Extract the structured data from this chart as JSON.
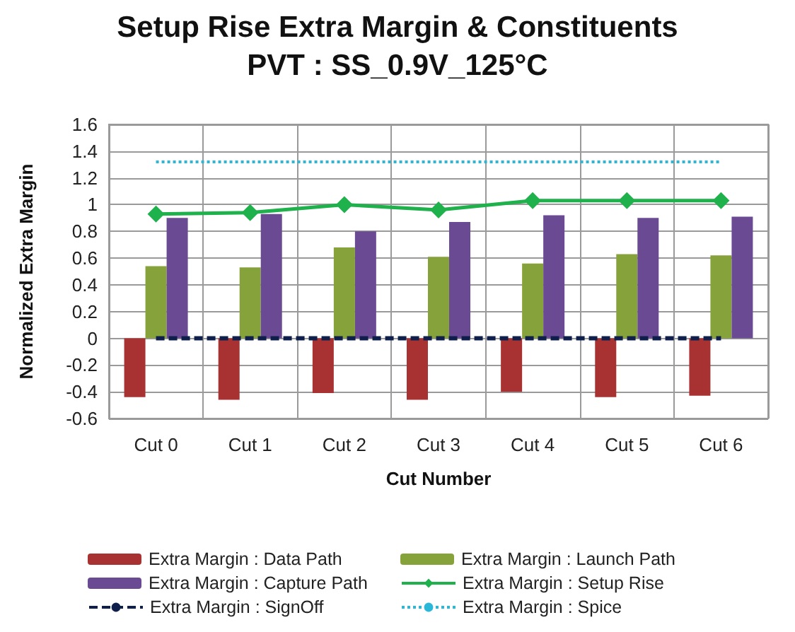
{
  "chart_data": {
    "type": "bar",
    "title": "Setup Rise Extra Margin & Constituents",
    "subtitle": "PVT : SS_0.9V_125°C",
    "xlabel": "Cut Number",
    "ylabel": "Normalized Extra Margin",
    "categories": [
      "Cut 0",
      "Cut 1",
      "Cut 2",
      "Cut 3",
      "Cut 4",
      "Cut 5",
      "Cut 6"
    ],
    "series": [
      {
        "name": "Extra Margin : Data Path",
        "color": "#a83232",
        "values": [
          -0.44,
          -0.46,
          -0.41,
          -0.46,
          -0.4,
          -0.44,
          -0.43
        ]
      },
      {
        "name": "Extra Margin : Launch Path",
        "color": "#86a23a",
        "values": [
          0.54,
          0.53,
          0.68,
          0.61,
          0.56,
          0.63,
          0.62
        ]
      },
      {
        "name": "Extra Margin : Capture Path",
        "color": "#6b4a94",
        "values": [
          0.9,
          0.93,
          0.8,
          0.87,
          0.92,
          0.9,
          0.91
        ]
      },
      {
        "name": "Extra Margin : Setup Rise",
        "color": "#1fb14c",
        "type": "line",
        "marker": "diamond",
        "line_style": "solid",
        "values": [
          0.93,
          0.94,
          1.0,
          0.96,
          1.03,
          1.03,
          1.03
        ]
      },
      {
        "name": "Extra Margin : SignOff",
        "color": "#0d1f4a",
        "type": "line",
        "marker": "none",
        "line_style": "dashed",
        "values": [
          0,
          0,
          0,
          0,
          0,
          0,
          0
        ]
      },
      {
        "name": "Extra Margin : Spice",
        "color": "#2ab8d8",
        "type": "line",
        "marker": "none",
        "line_style": "dotted",
        "values": [
          1.32,
          1.32,
          1.32,
          1.32,
          1.32,
          1.32,
          1.32
        ]
      }
    ],
    "ylim": [
      -0.6,
      1.6
    ],
    "yticks": [
      -0.6,
      -0.4,
      -0.2,
      0,
      0.2,
      0.4,
      0.6,
      0.8,
      1,
      1.2,
      1.4,
      1.6
    ],
    "grid": true,
    "legend": "bottom"
  }
}
